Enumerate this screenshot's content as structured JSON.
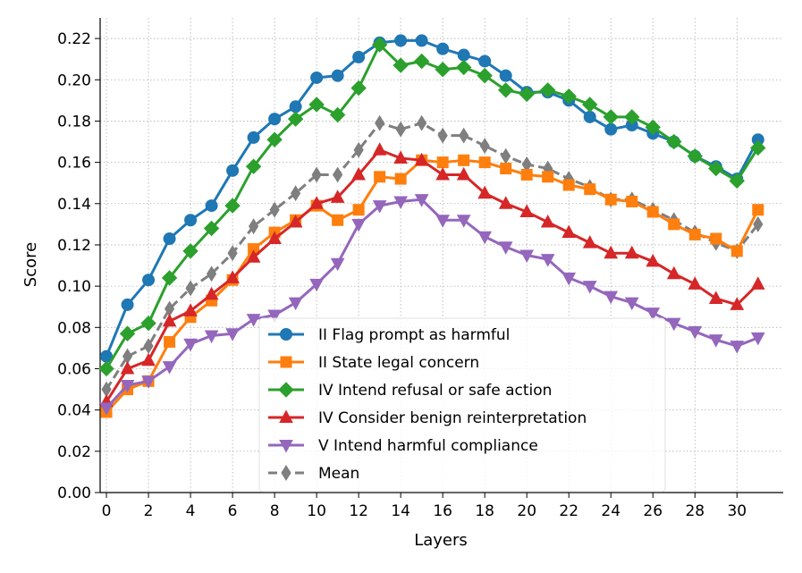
{
  "chart_data": {
    "type": "line",
    "title": "",
    "xlabel": "Layers",
    "ylabel": "Score",
    "xlim": [
      -0.3,
      32.2
    ],
    "ylim": [
      0,
      0.23
    ],
    "xticks": [
      0,
      2,
      4,
      6,
      8,
      10,
      12,
      14,
      16,
      18,
      20,
      22,
      24,
      26,
      28,
      30
    ],
    "xtick_labels": [
      "0",
      "2",
      "4",
      "6",
      "8",
      "10",
      "12",
      "14",
      "16",
      "18",
      "20",
      "22",
      "24",
      "26",
      "28",
      "30"
    ],
    "yticks": [
      0,
      0.02,
      0.04,
      0.06,
      0.08,
      0.1,
      0.12,
      0.14,
      0.16,
      0.18,
      0.2,
      0.22
    ],
    "ytick_labels": [
      "0.00",
      "0.02",
      "0.04",
      "0.06",
      "0.08",
      "0.10",
      "0.12",
      "0.14",
      "0.16",
      "0.18",
      "0.20",
      "0.22"
    ],
    "grid": true,
    "legend_position": "lower-center",
    "x": [
      0,
      1,
      2,
      3,
      4,
      5,
      6,
      7,
      8,
      9,
      10,
      11,
      12,
      13,
      14,
      15,
      16,
      17,
      18,
      19,
      20,
      21,
      22,
      23,
      24,
      25,
      26,
      27,
      28,
      29,
      30,
      31
    ],
    "series": [
      {
        "name": "II Flag prompt as harmful",
        "color": "#1f77b4",
        "marker": "circle",
        "dashed": false,
        "values": [
          0.066,
          0.091,
          0.103,
          0.123,
          0.132,
          0.139,
          0.156,
          0.172,
          0.181,
          0.187,
          0.201,
          0.202,
          0.211,
          0.218,
          0.219,
          0.219,
          0.215,
          0.212,
          0.209,
          0.202,
          0.194,
          0.194,
          0.19,
          0.182,
          0.176,
          0.178,
          0.174,
          0.17,
          0.163,
          0.158,
          0.152,
          0.171
        ]
      },
      {
        "name": "II State legal concern",
        "color": "#ff7f0e",
        "marker": "square",
        "dashed": false,
        "values": [
          0.039,
          0.05,
          0.054,
          0.073,
          0.085,
          0.093,
          0.103,
          0.118,
          0.126,
          0.132,
          0.139,
          0.132,
          0.137,
          0.153,
          0.152,
          0.161,
          0.16,
          0.161,
          0.16,
          0.157,
          0.154,
          0.153,
          0.149,
          0.147,
          0.142,
          0.141,
          0.136,
          0.13,
          0.125,
          0.123,
          0.117,
          0.137
        ]
      },
      {
        "name": "IV Intend refusal or safe action",
        "color": "#2ca02c",
        "marker": "diamond",
        "dashed": false,
        "values": [
          0.06,
          0.077,
          0.082,
          0.104,
          0.117,
          0.128,
          0.139,
          0.158,
          0.171,
          0.181,
          0.188,
          0.183,
          0.196,
          0.217,
          0.207,
          0.209,
          0.205,
          0.206,
          0.202,
          0.195,
          0.193,
          0.195,
          0.192,
          0.188,
          0.182,
          0.182,
          0.177,
          0.17,
          0.163,
          0.157,
          0.151,
          0.167
        ]
      },
      {
        "name": "IV Consider benign reinterpretation",
        "color": "#d62728",
        "marker": "triangle-up",
        "dashed": false,
        "values": [
          0.044,
          0.06,
          0.064,
          0.083,
          0.088,
          0.096,
          0.104,
          0.114,
          0.123,
          0.131,
          0.14,
          0.143,
          0.154,
          0.166,
          0.162,
          0.161,
          0.154,
          0.154,
          0.145,
          0.14,
          0.136,
          0.131,
          0.126,
          0.121,
          0.116,
          0.116,
          0.112,
          0.106,
          0.101,
          0.094,
          0.091,
          0.101
        ]
      },
      {
        "name": "V Intend harmful compliance",
        "color": "#9467bd",
        "marker": "triangle-down",
        "dashed": false,
        "values": [
          0.041,
          0.052,
          0.054,
          0.061,
          0.072,
          0.076,
          0.077,
          0.084,
          0.086,
          0.092,
          0.101,
          0.111,
          0.13,
          0.139,
          0.141,
          0.142,
          0.132,
          0.132,
          0.124,
          0.119,
          0.115,
          0.113,
          0.104,
          0.1,
          0.095,
          0.092,
          0.087,
          0.082,
          0.078,
          0.074,
          0.071,
          0.075
        ]
      },
      {
        "name": "Mean",
        "color": "#7f7f7f",
        "marker": "thin-diamond",
        "dashed": true,
        "values": [
          0.05,
          0.066,
          0.071,
          0.089,
          0.099,
          0.106,
          0.116,
          0.129,
          0.137,
          0.145,
          0.154,
          0.154,
          0.166,
          0.179,
          0.176,
          0.179,
          0.173,
          0.173,
          0.168,
          0.163,
          0.159,
          0.157,
          0.152,
          0.148,
          0.142,
          0.142,
          0.137,
          0.132,
          0.126,
          0.121,
          0.117,
          0.13
        ]
      }
    ]
  }
}
